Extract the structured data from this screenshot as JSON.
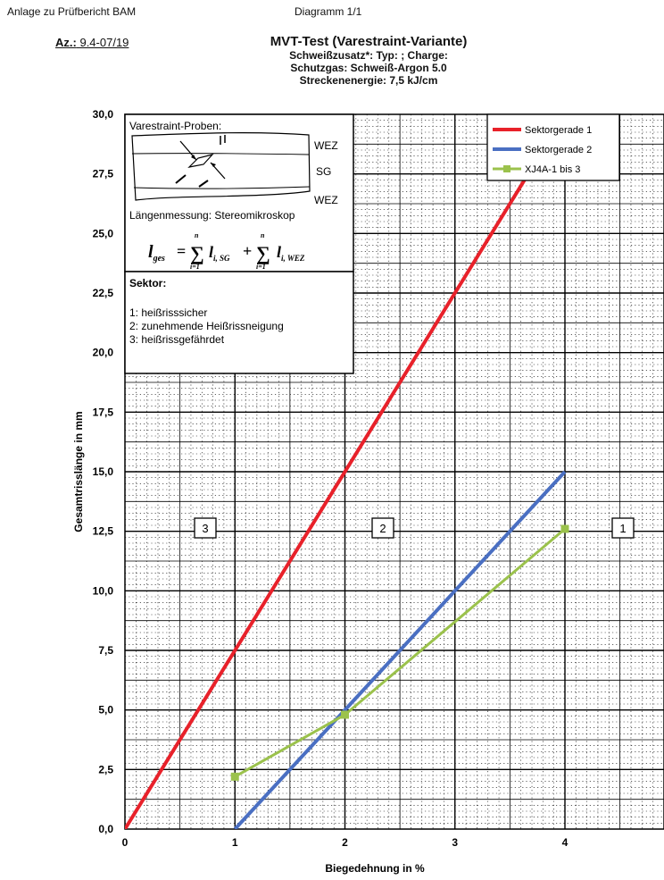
{
  "header": {
    "left": "Anlage zu Prüfbericht BAM",
    "center": "Diagramm 1/1",
    "reference_label": "Az.:",
    "reference_value": "9.4-07/19"
  },
  "titles": {
    "main": "MVT-Test (Varestraint-Variante)",
    "line2": "Schweißzusatz*: Typ:   ; Charge:",
    "line3": "Schutzgas: Schweiß-Argon 5.0",
    "line4": "Streckenenergie: 7,5 kJ/cm"
  },
  "inset": {
    "title": "Varestraint-Proben:",
    "zone_top": "WEZ",
    "zone_mid": "SG",
    "zone_bottom": "WEZ",
    "measurement": "Längenmessung: Stereomikroskop",
    "formula_lhs": "l",
    "formula_lhs_sub": "ges",
    "formula_term1": "l",
    "formula_term1_sub": "i, SG",
    "formula_term2": "l",
    "formula_term2_sub": "i, WEZ",
    "sum_upper": "n",
    "sum_lower": "i=1",
    "crack_mark": "l"
  },
  "sector_box": {
    "title": "Sektor:",
    "items": [
      "1: heißrisssicher",
      "2: zunehmende Heißrissneigung",
      "3: heißrissgefährdet"
    ]
  },
  "sector_markers": [
    "3",
    "2",
    "1"
  ],
  "colors": {
    "red": "#e8212a",
    "blue": "#4a6fc2",
    "green": "#9bc24c"
  },
  "chart_data": {
    "type": "line",
    "xlabel": "Biegedehnung in %",
    "ylabel": "Gesamtrisslänge in mm",
    "xlim": [
      0,
      4.9
    ],
    "ylim": [
      0,
      30
    ],
    "x_ticks": [
      "0",
      "1",
      "2",
      "3",
      "4"
    ],
    "y_ticks": [
      "0,0",
      "2,5",
      "5,0",
      "7,5",
      "10,0",
      "12,5",
      "15,0",
      "17,5",
      "20,0",
      "22,5",
      "25,0",
      "27,5",
      "30,0"
    ],
    "grid": true,
    "legend_position": "top-right",
    "series": [
      {
        "name": "Sektorgerade 1",
        "color": "#e8212a",
        "marker": false,
        "x": [
          0,
          4
        ],
        "y": [
          0,
          30
        ]
      },
      {
        "name": "Sektorgerade 2",
        "color": "#4a6fc2",
        "marker": false,
        "x": [
          1,
          4
        ],
        "y": [
          0,
          15
        ]
      },
      {
        "name": "XJ4A-1 bis 3",
        "color": "#9bc24c",
        "marker": true,
        "x": [
          1,
          2,
          4
        ],
        "y": [
          2.2,
          4.8,
          12.6
        ]
      }
    ]
  }
}
